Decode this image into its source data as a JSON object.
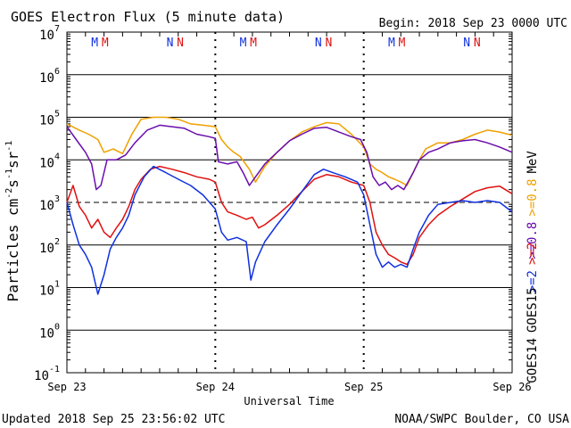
{
  "header": {
    "title": "GOES Electron Flux (5 minute data)",
    "begin": "Begin: 2018 Sep 23 0000 UTC"
  },
  "footer": {
    "updated": "Updated 2018 Sep 25 23:56:02 UTC",
    "credit": "NOAA/SWPC Boulder, CO USA"
  },
  "colors": {
    "goes14_08": "#6a0dad",
    "goes15_08": "#f0a000",
    "goes14_2": "#1030e0",
    "goes15_2": "#e01010",
    "m_marker": "#e01010",
    "n_marker": "#1030e0"
  },
  "chart_data": {
    "type": "line",
    "title": "GOES Electron Flux (5 minute data)",
    "xlabel": "Universal Time",
    "ylabel_base": "Particles cm",
    "ylabel_exp1": "-2",
    "ylabel_mid1": "s",
    "ylabel_exp2": "-1",
    "ylabel_mid2": "sr",
    "ylabel_exp3": "-1",
    "y_scale": "log",
    "ylim": [
      0.1,
      10000000
    ],
    "y_ticks": [
      {
        "value": 10000000,
        "base": "10",
        "exp": "7"
      },
      {
        "value": 1000000,
        "base": "10",
        "exp": "6"
      },
      {
        "value": 100000,
        "base": "10",
        "exp": "5"
      },
      {
        "value": 10000,
        "base": "10",
        "exp": "4"
      },
      {
        "value": 1000,
        "base": "10",
        "exp": "3"
      },
      {
        "value": 100,
        "base": "10",
        "exp": "2"
      },
      {
        "value": 10,
        "base": "10",
        "exp": "1"
      },
      {
        "value": 1,
        "base": "10",
        "exp": "0"
      },
      {
        "value": 0.1,
        "base": "10",
        "exp": "-1"
      }
    ],
    "xlim": [
      "2018-09-23T00:00",
      "2018-09-26T00:00"
    ],
    "x_ticks": [
      {
        "value": "2018-09-23T00:00",
        "label": "Sep 23"
      },
      {
        "value": "2018-09-24T00:00",
        "label": "Sep 24"
      },
      {
        "value": "2018-09-25T00:00",
        "label": "Sep 25"
      },
      {
        "value": "2018-09-26T00:00",
        "label": "Sep 26"
      }
    ],
    "threshold_line": 1000,
    "orbit_markers": [
      {
        "letter": "M",
        "time": "2018-09-23T04:30",
        "color": "#1030e0"
      },
      {
        "letter": "M",
        "time": "2018-09-23T06:10",
        "color": "#e01010"
      },
      {
        "letter": "N",
        "time": "2018-09-23T16:40",
        "color": "#1030e0"
      },
      {
        "letter": "N",
        "time": "2018-09-23T18:20",
        "color": "#e01010"
      },
      {
        "letter": "M",
        "time": "2018-09-24T04:30",
        "color": "#1030e0"
      },
      {
        "letter": "M",
        "time": "2018-09-24T06:10",
        "color": "#e01010"
      },
      {
        "letter": "N",
        "time": "2018-09-24T16:40",
        "color": "#1030e0"
      },
      {
        "letter": "N",
        "time": "2018-09-24T18:20",
        "color": "#e01010"
      },
      {
        "letter": "M",
        "time": "2018-09-25T04:30",
        "color": "#1030e0"
      },
      {
        "letter": "M",
        "time": "2018-09-25T06:10",
        "color": "#e01010"
      },
      {
        "letter": "N",
        "time": "2018-09-25T16:40",
        "color": "#1030e0"
      },
      {
        "letter": "N",
        "time": "2018-09-25T18:20",
        "color": "#e01010"
      }
    ],
    "legend": {
      "placement": "right",
      "satellite_labels": [
        ">=2",
        ">=2"
      ],
      "energy_labels": [
        ">=0.8",
        ">=0.8"
      ],
      "units": "MeV",
      "satellites": [
        "GOES14",
        "GOES15"
      ]
    },
    "series": [
      {
        "name": "GOES15 >=0.8 MeV",
        "color": "#f0a000",
        "points": [
          [
            "2018-09-23T00:00",
            70000
          ],
          [
            "2018-09-23T02:00",
            50000
          ],
          [
            "2018-09-23T03:30",
            40000
          ],
          [
            "2018-09-23T05:00",
            30000
          ],
          [
            "2018-09-23T06:00",
            15000
          ],
          [
            "2018-09-23T07:30",
            18000
          ],
          [
            "2018-09-23T09:00",
            14000
          ],
          [
            "2018-09-23T10:30",
            40000
          ],
          [
            "2018-09-23T12:00",
            90000
          ],
          [
            "2018-09-23T14:00",
            100000
          ],
          [
            "2018-09-23T16:00",
            100000
          ],
          [
            "2018-09-23T18:00",
            90000
          ],
          [
            "2018-09-23T20:00",
            70000
          ],
          [
            "2018-09-23T22:00",
            65000
          ],
          [
            "2018-09-24T00:00",
            60000
          ],
          [
            "2018-09-24T01:00",
            30000
          ],
          [
            "2018-09-24T02:00",
            20000
          ],
          [
            "2018-09-24T03:00",
            15000
          ],
          [
            "2018-09-24T04:00",
            12000
          ],
          [
            "2018-09-24T05:30",
            6000
          ],
          [
            "2018-09-24T06:30",
            3000
          ],
          [
            "2018-09-24T08:00",
            7000
          ],
          [
            "2018-09-24T10:00",
            15000
          ],
          [
            "2018-09-24T12:00",
            28000
          ],
          [
            "2018-09-24T14:00",
            45000
          ],
          [
            "2018-09-24T16:00",
            60000
          ],
          [
            "2018-09-24T18:00",
            75000
          ],
          [
            "2018-09-24T20:00",
            70000
          ],
          [
            "2018-09-24T22:00",
            40000
          ],
          [
            "2018-09-25T00:00",
            20000
          ],
          [
            "2018-09-25T01:00",
            8000
          ],
          [
            "2018-09-25T02:00",
            6000
          ],
          [
            "2018-09-25T03:00",
            5000
          ],
          [
            "2018-09-25T04:00",
            4000
          ],
          [
            "2018-09-25T05:00",
            3500
          ],
          [
            "2018-09-25T06:00",
            3000
          ],
          [
            "2018-09-25T07:00",
            2500
          ],
          [
            "2018-09-25T08:00",
            5000
          ],
          [
            "2018-09-25T09:00",
            10000
          ],
          [
            "2018-09-25T10:00",
            18000
          ],
          [
            "2018-09-25T12:00",
            25000
          ],
          [
            "2018-09-25T14:00",
            25000
          ],
          [
            "2018-09-25T16:00",
            30000
          ],
          [
            "2018-09-25T18:00",
            40000
          ],
          [
            "2018-09-25T20:00",
            50000
          ],
          [
            "2018-09-25T22:00",
            45000
          ],
          [
            "2018-09-26T00:00",
            38000
          ]
        ]
      },
      {
        "name": "GOES14 >=0.8 MeV",
        "color": "#6a0dad",
        "points": [
          [
            "2018-09-23T00:00",
            60000
          ],
          [
            "2018-09-23T01:30",
            30000
          ],
          [
            "2018-09-23T03:00",
            15000
          ],
          [
            "2018-09-23T04:00",
            8000
          ],
          [
            "2018-09-23T04:45",
            2000
          ],
          [
            "2018-09-23T05:30",
            2500
          ],
          [
            "2018-09-23T06:30",
            10000
          ],
          [
            "2018-09-23T08:00",
            10000
          ],
          [
            "2018-09-23T09:30",
            13000
          ],
          [
            "2018-09-23T11:00",
            25000
          ],
          [
            "2018-09-23T13:00",
            50000
          ],
          [
            "2018-09-23T15:00",
            65000
          ],
          [
            "2018-09-23T17:00",
            60000
          ],
          [
            "2018-09-23T19:00",
            55000
          ],
          [
            "2018-09-23T21:00",
            40000
          ],
          [
            "2018-09-23T23:00",
            35000
          ],
          [
            "2018-09-24T00:00",
            32000
          ],
          [
            "2018-09-24T00:30",
            9000
          ],
          [
            "2018-09-24T02:00",
            8000
          ],
          [
            "2018-09-24T03:30",
            9000
          ],
          [
            "2018-09-24T04:30",
            5000
          ],
          [
            "2018-09-24T05:30",
            2500
          ],
          [
            "2018-09-24T06:30",
            4000
          ],
          [
            "2018-09-24T08:00",
            8000
          ],
          [
            "2018-09-24T10:00",
            15000
          ],
          [
            "2018-09-24T12:00",
            28000
          ],
          [
            "2018-09-24T14:00",
            40000
          ],
          [
            "2018-09-24T16:00",
            55000
          ],
          [
            "2018-09-24T18:00",
            58000
          ],
          [
            "2018-09-24T20:00",
            45000
          ],
          [
            "2018-09-24T22:00",
            35000
          ],
          [
            "2018-09-24T23:30",
            30000
          ],
          [
            "2018-09-25T00:30",
            15000
          ],
          [
            "2018-09-25T01:30",
            4000
          ],
          [
            "2018-09-25T02:30",
            2500
          ],
          [
            "2018-09-25T03:30",
            3000
          ],
          [
            "2018-09-25T04:30",
            2000
          ],
          [
            "2018-09-25T05:30",
            2500
          ],
          [
            "2018-09-25T06:30",
            2000
          ],
          [
            "2018-09-25T08:00",
            5000
          ],
          [
            "2018-09-25T09:00",
            10000
          ],
          [
            "2018-09-25T10:30",
            15000
          ],
          [
            "2018-09-25T12:00",
            18000
          ],
          [
            "2018-09-25T14:00",
            25000
          ],
          [
            "2018-09-25T16:00",
            28000
          ],
          [
            "2018-09-25T18:00",
            30000
          ],
          [
            "2018-09-25T20:00",
            25000
          ],
          [
            "2018-09-25T22:00",
            20000
          ],
          [
            "2018-09-26T00:00",
            15000
          ]
        ]
      },
      {
        "name": "GOES15 >=2 MeV",
        "color": "#e01010",
        "points": [
          [
            "2018-09-23T00:00",
            1000
          ],
          [
            "2018-09-23T01:00",
            2500
          ],
          [
            "2018-09-23T02:00",
            800
          ],
          [
            "2018-09-23T03:00",
            500
          ],
          [
            "2018-09-23T04:00",
            250
          ],
          [
            "2018-09-23T05:00",
            400
          ],
          [
            "2018-09-23T06:00",
            200
          ],
          [
            "2018-09-23T07:00",
            150
          ],
          [
            "2018-09-23T08:00",
            250
          ],
          [
            "2018-09-23T09:00",
            400
          ],
          [
            "2018-09-23T10:00",
            800
          ],
          [
            "2018-09-23T11:00",
            2000
          ],
          [
            "2018-09-23T12:00",
            3500
          ],
          [
            "2018-09-23T13:30",
            6000
          ],
          [
            "2018-09-23T15:00",
            7000
          ],
          [
            "2018-09-23T17:00",
            6000
          ],
          [
            "2018-09-23T19:00",
            5000
          ],
          [
            "2018-09-23T21:00",
            4000
          ],
          [
            "2018-09-23T23:00",
            3500
          ],
          [
            "2018-09-24T00:00",
            3000
          ],
          [
            "2018-09-24T01:00",
            1000
          ],
          [
            "2018-09-24T02:00",
            600
          ],
          [
            "2018-09-24T03:30",
            500
          ],
          [
            "2018-09-24T05:00",
            400
          ],
          [
            "2018-09-24T06:00",
            450
          ],
          [
            "2018-09-24T07:00",
            250
          ],
          [
            "2018-09-24T08:00",
            300
          ],
          [
            "2018-09-24T10:00",
            500
          ],
          [
            "2018-09-24T12:00",
            900
          ],
          [
            "2018-09-24T14:00",
            1800
          ],
          [
            "2018-09-24T16:00",
            3500
          ],
          [
            "2018-09-24T18:00",
            4500
          ],
          [
            "2018-09-24T20:00",
            4000
          ],
          [
            "2018-09-24T22:00",
            3000
          ],
          [
            "2018-09-25T00:00",
            2500
          ],
          [
            "2018-09-25T01:00",
            1000
          ],
          [
            "2018-09-25T02:00",
            200
          ],
          [
            "2018-09-25T03:00",
            100
          ],
          [
            "2018-09-25T04:00",
            60
          ],
          [
            "2018-09-25T05:00",
            50
          ],
          [
            "2018-09-25T06:00",
            40
          ],
          [
            "2018-09-25T07:00",
            35
          ],
          [
            "2018-09-25T08:00",
            60
          ],
          [
            "2018-09-25T09:00",
            150
          ],
          [
            "2018-09-25T10:30",
            300
          ],
          [
            "2018-09-25T12:00",
            500
          ],
          [
            "2018-09-25T14:00",
            800
          ],
          [
            "2018-09-25T16:00",
            1200
          ],
          [
            "2018-09-25T18:00",
            1800
          ],
          [
            "2018-09-25T20:00",
            2200
          ],
          [
            "2018-09-25T22:00",
            2400
          ],
          [
            "2018-09-26T00:00",
            1600
          ]
        ]
      },
      {
        "name": "GOES14 >=2 MeV",
        "color": "#1030e0",
        "points": [
          [
            "2018-09-23T00:00",
            1000
          ],
          [
            "2018-09-23T01:00",
            300
          ],
          [
            "2018-09-23T02:00",
            100
          ],
          [
            "2018-09-23T03:00",
            60
          ],
          [
            "2018-09-23T04:00",
            30
          ],
          [
            "2018-09-23T05:00",
            7
          ],
          [
            "2018-09-23T06:00",
            20
          ],
          [
            "2018-09-23T07:00",
            80
          ],
          [
            "2018-09-23T08:00",
            150
          ],
          [
            "2018-09-23T09:00",
            250
          ],
          [
            "2018-09-23T10:00",
            500
          ],
          [
            "2018-09-23T11:00",
            1500
          ],
          [
            "2018-09-23T12:30",
            4000
          ],
          [
            "2018-09-23T14:00",
            7000
          ],
          [
            "2018-09-23T16:00",
            5000
          ],
          [
            "2018-09-23T18:00",
            3500
          ],
          [
            "2018-09-23T20:00",
            2500
          ],
          [
            "2018-09-23T22:00",
            1500
          ],
          [
            "2018-09-24T00:00",
            700
          ],
          [
            "2018-09-24T01:00",
            200
          ],
          [
            "2018-09-24T02:00",
            130
          ],
          [
            "2018-09-24T03:30",
            150
          ],
          [
            "2018-09-24T05:00",
            120
          ],
          [
            "2018-09-24T05:45",
            15
          ],
          [
            "2018-09-24T06:30",
            40
          ],
          [
            "2018-09-24T08:00",
            120
          ],
          [
            "2018-09-24T10:00",
            300
          ],
          [
            "2018-09-24T12:00",
            700
          ],
          [
            "2018-09-24T14:00",
            1800
          ],
          [
            "2018-09-24T16:00",
            4500
          ],
          [
            "2018-09-24T17:30",
            6000
          ],
          [
            "2018-09-24T19:00",
            5000
          ],
          [
            "2018-09-24T21:00",
            4000
          ],
          [
            "2018-09-24T23:00",
            3000
          ],
          [
            "2018-09-25T00:00",
            1500
          ],
          [
            "2018-09-25T01:00",
            300
          ],
          [
            "2018-09-25T02:00",
            60
          ],
          [
            "2018-09-25T03:00",
            30
          ],
          [
            "2018-09-25T04:00",
            40
          ],
          [
            "2018-09-25T05:00",
            30
          ],
          [
            "2018-09-25T06:00",
            35
          ],
          [
            "2018-09-25T07:00",
            30
          ],
          [
            "2018-09-25T08:00",
            80
          ],
          [
            "2018-09-25T09:00",
            200
          ],
          [
            "2018-09-25T10:30",
            500
          ],
          [
            "2018-09-25T12:00",
            900
          ],
          [
            "2018-09-25T14:00",
            1000
          ],
          [
            "2018-09-25T16:00",
            1100
          ],
          [
            "2018-09-25T18:00",
            1000
          ],
          [
            "2018-09-25T20:00",
            1100
          ],
          [
            "2018-09-25T22:00",
            1000
          ],
          [
            "2018-09-26T00:00",
            600
          ]
        ]
      }
    ]
  }
}
